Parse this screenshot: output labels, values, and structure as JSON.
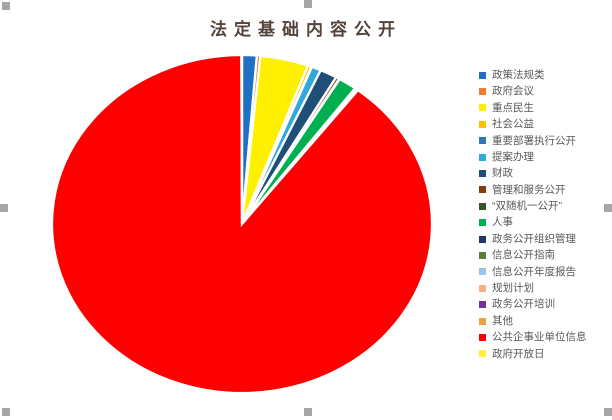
{
  "window": {
    "background": "#FFFFFF"
  },
  "title": {
    "text": "法定基础内容公开",
    "color": "#54433A"
  },
  "legend": {
    "text_color": "#595959",
    "position": "right"
  },
  "selection": {
    "handle_color": "#A6A6A6",
    "positions": [
      "top-left",
      "top-center",
      "left-middle",
      "right-middle",
      "bottom-left",
      "bottom-center",
      "bottom-right"
    ]
  },
  "chart_data": {
    "type": "pie",
    "title": "法定基础内容公开",
    "legend_position": "right",
    "start_angle_deg": 0,
    "clockwise": true,
    "units": "percent (estimated from slice angles)",
    "series": [
      {
        "label": "政策法规类",
        "color": "#1F6FC4",
        "value": 1.25
      },
      {
        "label": "政府会议",
        "color": "#ED7D31",
        "value": 0.3
      },
      {
        "label": "重点民生",
        "color": "#FFF000",
        "value": 4.1
      },
      {
        "label": "社会公益",
        "color": "#FFC000",
        "value": 0.3
      },
      {
        "label": "重要部署执行公开",
        "color": "#2E75B6",
        "value": 0.05
      },
      {
        "label": "提案办理",
        "color": "#2FA8DC",
        "value": 0.8
      },
      {
        "label": "财政",
        "color": "#1F4E79",
        "value": 1.45
      },
      {
        "label": "管理和服务公开",
        "color": "#843C0C",
        "value": 0.3
      },
      {
        "label": "“双随机一公开”",
        "color": "#375623",
        "value": 0.05
      },
      {
        "label": "人事",
        "color": "#00B050",
        "value": 1.55
      },
      {
        "label": "政务公开组织管理",
        "color": "#203864",
        "value": 0.05
      },
      {
        "label": "信息公开指南",
        "color": "#538135",
        "value": 0.05
      },
      {
        "label": "信息公开年度报告",
        "color": "#9DC3E6",
        "value": 0.05
      },
      {
        "label": "规划计划",
        "color": "#F4B183",
        "value": 0.05
      },
      {
        "label": "政务公开培训",
        "color": "#7030A0",
        "value": 0.05
      },
      {
        "label": "其他",
        "color": "#E8A33D",
        "value": 0.05
      },
      {
        "label": "公共企事业单位信息",
        "color": "#FF0000",
        "value": 89.5
      },
      {
        "label": "政府开放日",
        "color": "#FFF033",
        "value": 0.05
      }
    ],
    "pie_geometry": {
      "cx": 242,
      "cy": 224,
      "rx": 190,
      "ry": 169,
      "separator_color": "#FFFFFF"
    }
  }
}
